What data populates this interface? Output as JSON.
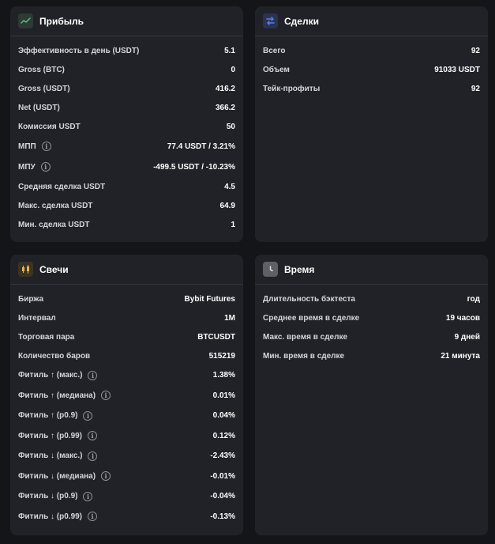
{
  "profit": {
    "title": "Прибыль",
    "icon": "trend-line-icon",
    "rows": [
      {
        "label": "Эффективность в день (USDT)",
        "value": "5.1"
      },
      {
        "label": "Gross (BTC)",
        "value": "0"
      },
      {
        "label": "Gross (USDT)",
        "value": "416.2"
      },
      {
        "label": "Net (USDT)",
        "value": "366.2"
      },
      {
        "label": "Комиссия USDT",
        "value": "50"
      },
      {
        "label": "МПП",
        "value": "77.4 USDT / 3.21%"
      },
      {
        "label": "МПУ",
        "value": "-499.5 USDT / -10.23%"
      },
      {
        "label": "Средняя сделка USDT",
        "value": "4.5"
      },
      {
        "label": "Макс. сделка USDT",
        "value": "64.9"
      },
      {
        "label": "Мин. сделка USDT",
        "value": "1"
      }
    ]
  },
  "deals": {
    "title": "Сделки",
    "icon": "swap-arrows-icon",
    "rows": [
      {
        "label": "Всего",
        "value": "92"
      },
      {
        "label": "Объем",
        "value": "91033 USDT"
      },
      {
        "label": "Тейк-профиты",
        "value": "92"
      }
    ]
  },
  "candles": {
    "title": "Свечи",
    "icon": "candlestick-icon",
    "rows": [
      {
        "label": "Биржа",
        "value": "Bybit Futures"
      },
      {
        "label": "Интервал",
        "value": "1M"
      },
      {
        "label": "Торговая пара",
        "value": "BTCUSDT"
      },
      {
        "label": "Количество баров",
        "value": "515219"
      },
      {
        "label": "Фитиль ↑ (макс.)",
        "value": "1.38%"
      },
      {
        "label": "Фитиль ↑ (медиана)",
        "value": "0.01%"
      },
      {
        "label": "Фитиль ↑ (p0.9)",
        "value": "0.04%"
      },
      {
        "label": "Фитиль ↑ (p0.99)",
        "value": "0.12%"
      },
      {
        "label": "Фитиль ↓ (макс.)",
        "value": "-2.43%"
      },
      {
        "label": "Фитиль ↓ (медиана)",
        "value": "-0.01%"
      },
      {
        "label": "Фитиль ↓ (p0.9)",
        "value": "-0.04%"
      },
      {
        "label": "Фитиль ↓ (p0.99)",
        "value": "-0.13%"
      }
    ]
  },
  "time": {
    "title": "Время",
    "icon": "clock-icon",
    "rows": [
      {
        "label": "Длительность бэктеста",
        "value": "год"
      },
      {
        "label": "Среднее время в сделке",
        "value": "19 часов"
      },
      {
        "label": "Макс. время в сделке",
        "value": "9 дней"
      },
      {
        "label": "Мин. время в сделке",
        "value": "21 минута"
      }
    ]
  },
  "info_icon_glyph": "i",
  "colors": {
    "page_bg": "#141518",
    "card_bg": "#202227",
    "accent_green": "#4fc08d",
    "accent_blue": "#5b7cf5",
    "accent_gold": "#e8b44a"
  }
}
